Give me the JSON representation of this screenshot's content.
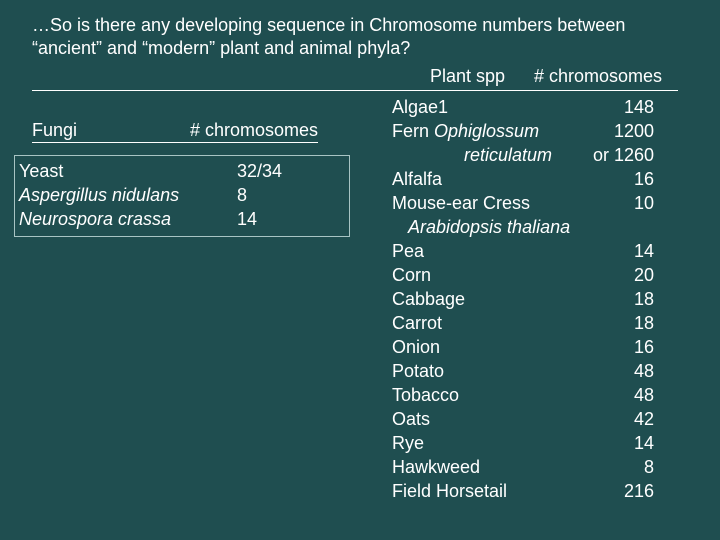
{
  "title": {
    "line1": "…So is there any developing sequence in Chromosome numbers between",
    "line2": "“ancient” and “modern” plant and animal phyla?"
  },
  "plant_header": {
    "species": "Plant spp",
    "chromosomes": "# chromosomes"
  },
  "fungi_header": {
    "label": "Fungi",
    "chromosomes": "# chromosomes"
  },
  "fungi": [
    {
      "name": "Yeast",
      "value": "32/34",
      "italic": false
    },
    {
      "name": "Aspergillus nidulans",
      "value": "8",
      "italic": true
    },
    {
      "name": "Neurospora crassa",
      "value": "14",
      "italic": true
    }
  ],
  "plants": {
    "algae": {
      "name": "Algae1",
      "value": "148"
    },
    "fern": {
      "name_prefix": "Fern ",
      "name_italic": "Ophiglossum",
      "value": "1200"
    },
    "fern_cont": {
      "name_italic": "reticulatum",
      "value": "or 1260"
    },
    "alfalfa": {
      "name": "Alfalfa",
      "value": "16"
    },
    "cress": {
      "name": "Mouse-ear Cress",
      "value": "10"
    },
    "cress_cont": {
      "name_italic": "Arabidopsis thaliana"
    },
    "pea": {
      "name": "Pea",
      "value": "14"
    },
    "corn": {
      "name": "Corn",
      "value": "20"
    },
    "cabbage": {
      "name": "Cabbage",
      "value": "18"
    },
    "carrot": {
      "name": "Carrot",
      "value": "18"
    },
    "onion": {
      "name": "Onion",
      "value": "16"
    },
    "potato": {
      "name": "Potato",
      "value": "48"
    },
    "tobacco": {
      "name": "Tobacco",
      "value": "48"
    },
    "oats": {
      "name": "Oats",
      "value": "42"
    },
    "rye": {
      "name": "Rye",
      "value": "14"
    },
    "hawkweed": {
      "name": "Hawkweed",
      "value": "8"
    },
    "horsetail": {
      "name": "Field Horsetail",
      "value": "216"
    }
  }
}
